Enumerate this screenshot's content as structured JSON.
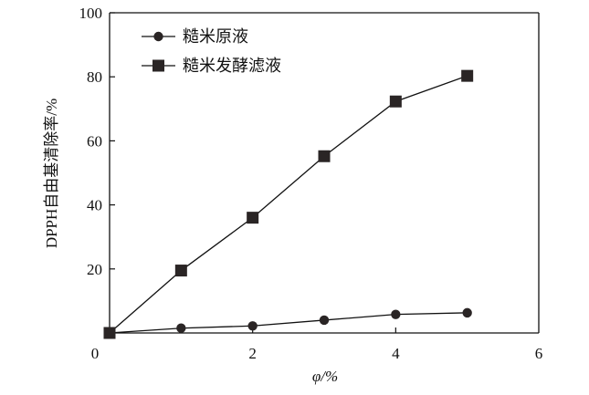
{
  "chart_data": {
    "type": "line",
    "title": "",
    "xlabel": "φ/%",
    "ylabel": "DPPH自由基清除率/%",
    "xlim": [
      0,
      6
    ],
    "ylim": [
      0,
      100
    ],
    "xticks": [
      0,
      2,
      4,
      6
    ],
    "yticks": [
      20,
      40,
      60,
      80,
      100
    ],
    "grid": false,
    "legend_position": "top-left",
    "series": [
      {
        "name": "糙米原液",
        "marker": "circle",
        "x": [
          0,
          1,
          2,
          3,
          4,
          5
        ],
        "y": [
          0,
          1.5,
          2.2,
          4.0,
          5.8,
          6.3
        ]
      },
      {
        "name": "糙米发酵滤液",
        "marker": "square",
        "x": [
          0,
          1,
          2,
          3,
          4,
          5
        ],
        "y": [
          0,
          19.5,
          36.0,
          55.2,
          72.3,
          80.3
        ]
      }
    ]
  }
}
